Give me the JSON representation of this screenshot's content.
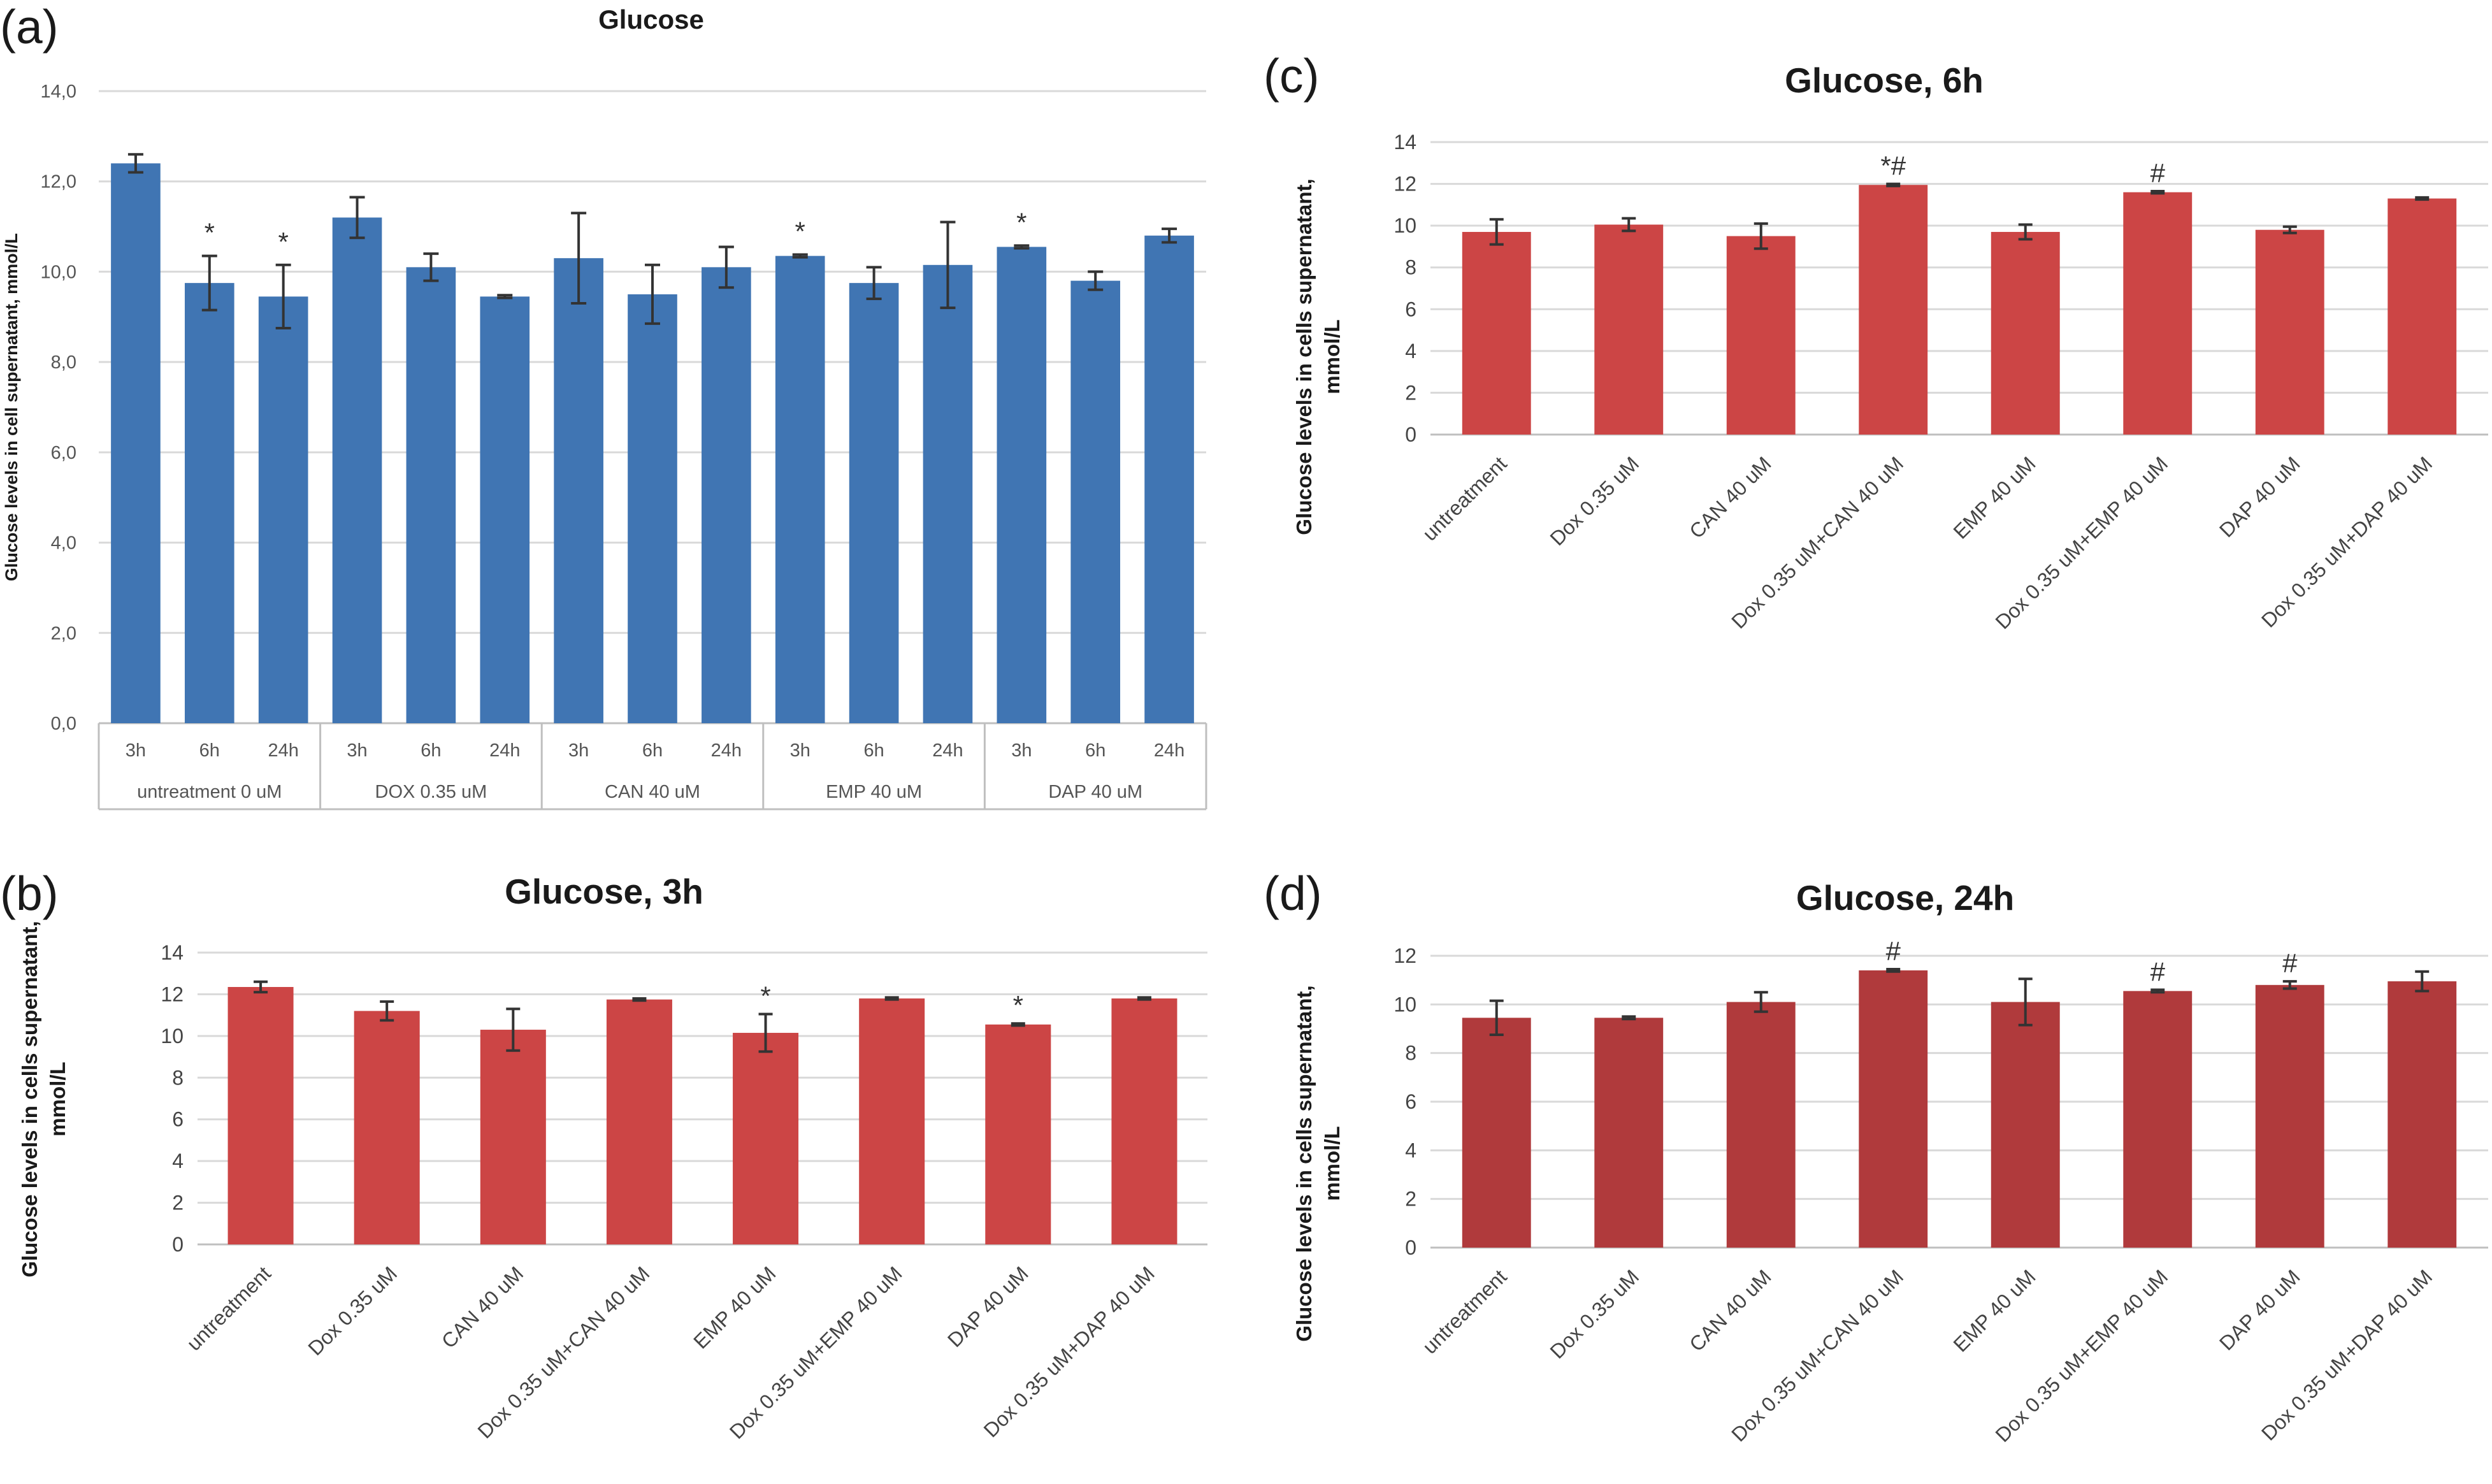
{
  "chart_data": [
    {
      "id": "a",
      "panel_label": "(a)",
      "type": "bar",
      "title": "Glucose",
      "ylabel": "Glucose levels in cell supernatant, mmol/L",
      "ylim": [
        0,
        14
      ],
      "yticks": [
        "0,0",
        "2,0",
        "4,0",
        "6,0",
        "8,0",
        "10,0",
        "12,0",
        "14,0"
      ],
      "color": "#4075b3",
      "groups": [
        {
          "label": "untreatment 0 uM",
          "bars": [
            {
              "x": "3h",
              "value": 12.4,
              "err": 0.2,
              "mark": ""
            },
            {
              "x": "6h",
              "value": 9.75,
              "err": 0.6,
              "mark": "*"
            },
            {
              "x": "24h",
              "value": 9.45,
              "err": 0.7,
              "mark": "*"
            }
          ]
        },
        {
          "label": "DOX 0.35 uM",
          "bars": [
            {
              "x": "3h",
              "value": 11.2,
              "err": 0.45,
              "mark": ""
            },
            {
              "x": "6h",
              "value": 10.1,
              "err": 0.3,
              "mark": ""
            },
            {
              "x": "24h",
              "value": 9.45,
              "err": 0.03,
              "mark": ""
            }
          ]
        },
        {
          "label": "CAN 40 uM",
          "bars": [
            {
              "x": "3h",
              "value": 10.3,
              "err": 1.0,
              "mark": ""
            },
            {
              "x": "6h",
              "value": 9.5,
              "err": 0.65,
              "mark": ""
            },
            {
              "x": "24h",
              "value": 10.1,
              "err": 0.45,
              "mark": ""
            }
          ]
        },
        {
          "label": "EMP 40 uM",
          "bars": [
            {
              "x": "3h",
              "value": 10.35,
              "err": 0.03,
              "mark": "*"
            },
            {
              "x": "6h",
              "value": 9.75,
              "err": 0.35,
              "mark": ""
            },
            {
              "x": "24h",
              "value": 10.15,
              "err": 0.95,
              "mark": ""
            }
          ]
        },
        {
          "label": "DAP 40 uM",
          "bars": [
            {
              "x": "3h",
              "value": 10.55,
              "err": 0.03,
              "mark": "*"
            },
            {
              "x": "6h",
              "value": 9.8,
              "err": 0.2,
              "mark": ""
            },
            {
              "x": "24h",
              "value": 10.8,
              "err": 0.15,
              "mark": ""
            }
          ]
        }
      ]
    },
    {
      "id": "b",
      "panel_label": "(b)",
      "type": "bar",
      "title": "Glucose, 3h",
      "ylabel": [
        "Glucose levels in cells  supernatant,",
        "mmol/L"
      ],
      "ylim": [
        0,
        14
      ],
      "yticks": [
        "0",
        "2",
        "4",
        "6",
        "8",
        "10",
        "12",
        "14"
      ],
      "color": "#cc4545",
      "categories": [
        "untreatment",
        "Dox 0.35 uM",
        "CAN 40 uM",
        "Dox 0.35 uM+CAN 40 uM",
        "EMP 40 uM",
        "Dox 0.35 uM+EMP 40 uM",
        "DAP 40 uM",
        "Dox 0.35 uM+DAP 40 uM"
      ],
      "values": [
        12.35,
        11.2,
        10.3,
        11.75,
        10.15,
        11.8,
        10.55,
        11.8
      ],
      "errors": [
        0.25,
        0.45,
        1.0,
        0.05,
        0.9,
        0.05,
        0.05,
        0.05
      ],
      "marks": [
        "",
        "",
        "",
        "",
        "*",
        "",
        "*",
        ""
      ]
    },
    {
      "id": "c",
      "panel_label": "(c)",
      "type": "bar",
      "title": "Glucose, 6h",
      "ylabel": [
        "Glucose levels in cells  supernatant,",
        "mmol/L"
      ],
      "ylim": [
        0,
        14
      ],
      "yticks": [
        "0",
        "2",
        "4",
        "6",
        "8",
        "10",
        "12",
        "14"
      ],
      "color": "#cc4545",
      "categories": [
        "untreatment",
        "Dox 0.35 uM",
        "CAN 40 uM",
        "Dox 0.35 uM+CAN 40 uM",
        "EMP 40 uM",
        "Dox 0.35 uM+EMP 40 uM",
        "DAP 40 uM",
        "Dox 0.35 uM+DAP 40 uM"
      ],
      "values": [
        9.7,
        10.05,
        9.5,
        11.95,
        9.7,
        11.6,
        9.8,
        11.3
      ],
      "errors": [
        0.6,
        0.3,
        0.6,
        0.05,
        0.35,
        0.05,
        0.15,
        0.05
      ],
      "marks": [
        "",
        "",
        "",
        "*#",
        "",
        "#",
        "",
        ""
      ]
    },
    {
      "id": "d",
      "panel_label": "(d)",
      "type": "bar",
      "title": "Glucose, 24h",
      "ylabel": [
        "Glucose levels in cells  supernatant,",
        "mmol/L"
      ],
      "ylim": [
        0,
        12
      ],
      "yticks": [
        "0",
        "2",
        "4",
        "6",
        "8",
        "10",
        "12"
      ],
      "color": "#b03a3c",
      "categories": [
        "untreatment",
        "Dox 0.35 uM",
        "CAN 40 uM",
        "Dox 0.35 uM+CAN 40 uM",
        "EMP 40 uM",
        "Dox 0.35 uM+EMP 40 uM",
        "DAP 40 uM",
        "Dox 0.35 uM+DAP 40 uM"
      ],
      "values": [
        9.45,
        9.45,
        10.1,
        11.4,
        10.1,
        10.55,
        10.8,
        10.95
      ],
      "errors": [
        0.7,
        0.05,
        0.4,
        0.05,
        0.95,
        0.05,
        0.15,
        0.4
      ],
      "marks": [
        "",
        "",
        "",
        "#",
        "",
        "#",
        "#",
        ""
      ]
    }
  ]
}
